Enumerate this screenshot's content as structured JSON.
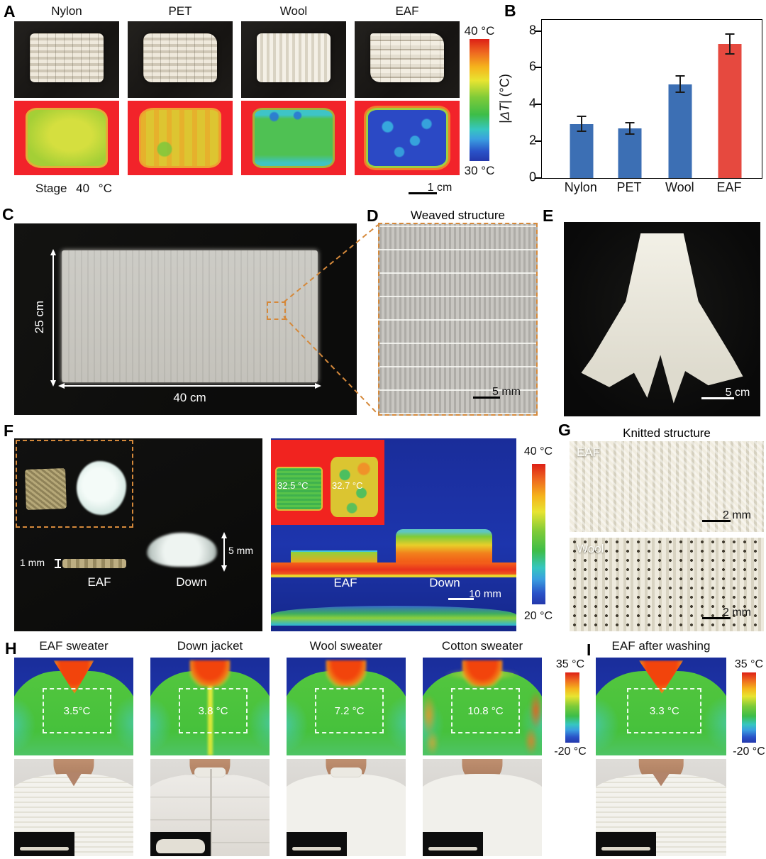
{
  "chart_data": {
    "type": "bar",
    "categories": [
      "Nylon",
      "PET",
      "Wool",
      "EAF"
    ],
    "values": [
      2.95,
      2.7,
      5.1,
      7.3
    ],
    "errors": [
      0.4,
      0.3,
      0.45,
      0.55
    ],
    "bar_colors": [
      "#3c6fb4",
      "#3c6fb4",
      "#3c6fb4",
      "#e6493f"
    ],
    "ylabel": "|ΔT| (°C)",
    "ylabel_prefix": "|",
    "ylabel_var": "ΔT",
    "ylabel_suffix": "| (°C)",
    "ylim": [
      0,
      8
    ],
    "yticks": [
      0,
      2,
      4,
      6,
      8
    ],
    "grid": false,
    "legend": null
  },
  "panels": {
    "A": {
      "letter": "A",
      "samples": [
        "Nylon",
        "PET",
        "Wool",
        "EAF"
      ],
      "stage": "Stage 40 °C",
      "scalebar": "1 cm",
      "cbar_top": "40 °C",
      "cbar_bottom": "30 °C"
    },
    "B": {
      "letter": "B"
    },
    "C": {
      "letter": "C",
      "height_label": "25 cm",
      "width_label": "40 cm"
    },
    "D": {
      "letter": "D",
      "title": "Weaved structure",
      "scalebar": "5 mm"
    },
    "E": {
      "letter": "E",
      "scalebar": "5 cm"
    },
    "F": {
      "letter": "F",
      "thickness_eaf": "1 mm",
      "thickness_down": "5 mm",
      "label_eaf": "EAF",
      "label_down": "Down",
      "therm_temp_eaf": "32.5 °C",
      "therm_temp_down": "32.7 °C",
      "therm_label_eaf": "EAF",
      "therm_label_down": "Down",
      "scalebar": "10 mm",
      "cbar_top": "40 °C",
      "cbar_bottom": "20 °C"
    },
    "G": {
      "letter": "G",
      "title": "Knitted structure",
      "items": [
        {
          "label": "EAF",
          "scalebar": "2 mm"
        },
        {
          "label": "Wool",
          "scalebar": "2 mm"
        }
      ]
    },
    "H": {
      "letter": "H",
      "columns": [
        {
          "title": "EAF sweater",
          "temp": "3.5°C"
        },
        {
          "title": "Down jacket",
          "temp": "3.8 °C"
        },
        {
          "title": "Wool sweater",
          "temp": "7.2 °C"
        },
        {
          "title": "Cotton sweater",
          "temp": "10.8 °C"
        }
      ],
      "cbar_top": "35 °C",
      "cbar_bottom": "-20 °C"
    },
    "I": {
      "letter": "I",
      "title": "EAF after washing",
      "temp": "3.3 °C",
      "cbar_top": "35 °C",
      "cbar_bottom": "-20 °C"
    }
  }
}
